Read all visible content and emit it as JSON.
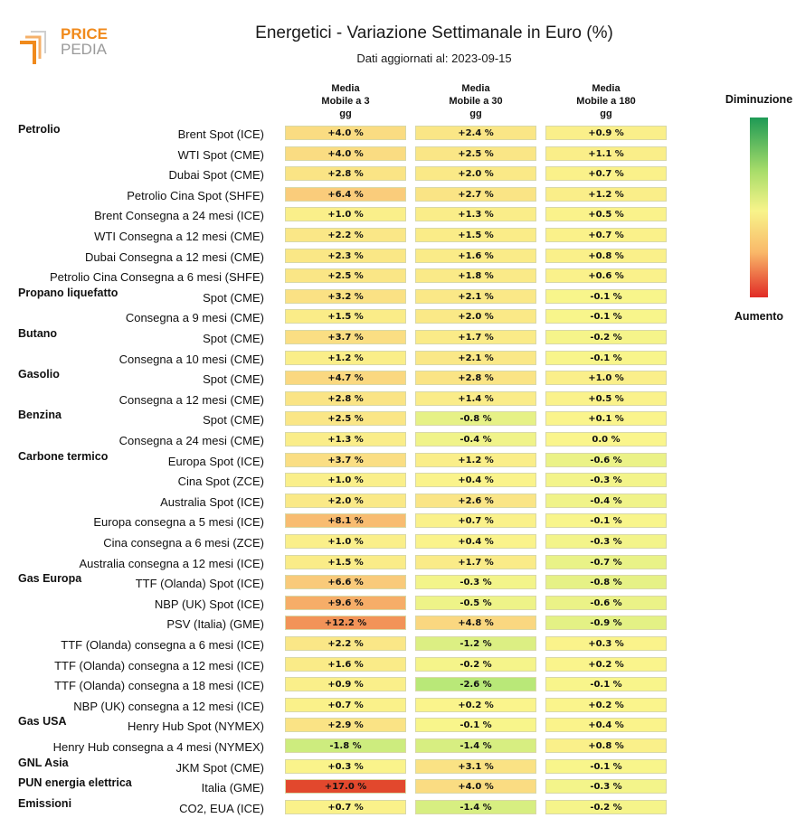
{
  "brand": {
    "line1": "PRICE",
    "line2": "PEDIA"
  },
  "chart_data": {
    "type": "heatmap",
    "title": "Energetici - Variazione Settimanale in Euro (%)",
    "subtitle": "Dati aggiornati al: 2023-09-15",
    "columns": [
      "Media Mobile a 3 gg",
      "Media Mobile a 30 gg",
      "Media Mobile a 180 gg"
    ],
    "legend": {
      "top": "Diminuzione",
      "bottom": "Aumento"
    },
    "rows": [
      {
        "group": "Petrolio",
        "label": "Brent Spot (ICE)",
        "values": [
          4.0,
          2.4,
          0.9
        ],
        "display": [
          "+4.0 %",
          "+2.4 %",
          "+0.9 %"
        ]
      },
      {
        "group": "",
        "label": "WTI Spot (CME)",
        "values": [
          4.0,
          2.5,
          1.1
        ],
        "display": [
          "+4.0 %",
          "+2.5 %",
          "+1.1 %"
        ]
      },
      {
        "group": "",
        "label": "Dubai Spot (CME)",
        "values": [
          2.8,
          2.0,
          0.7
        ],
        "display": [
          "+2.8 %",
          "+2.0 %",
          "+0.7 %"
        ]
      },
      {
        "group": "",
        "label": "Petrolio Cina Spot (SHFE)",
        "values": [
          6.4,
          2.7,
          1.2
        ],
        "display": [
          "+6.4 %",
          "+2.7 %",
          "+1.2 %"
        ]
      },
      {
        "group": "",
        "label": "Brent Consegna a 24 mesi (ICE)",
        "values": [
          1.0,
          1.3,
          0.5
        ],
        "display": [
          "+1.0 %",
          "+1.3 %",
          "+0.5 %"
        ]
      },
      {
        "group": "",
        "label": "WTI Consegna a 12 mesi (CME)",
        "values": [
          2.2,
          1.5,
          0.7
        ],
        "display": [
          "+2.2 %",
          "+1.5 %",
          "+0.7 %"
        ]
      },
      {
        "group": "",
        "label": "Dubai Consegna a 12 mesi (CME)",
        "values": [
          2.3,
          1.6,
          0.8
        ],
        "display": [
          "+2.3 %",
          "+1.6 %",
          "+0.8 %"
        ]
      },
      {
        "group": "",
        "label": "Petrolio Cina Consegna a 6 mesi (SHFE)",
        "values": [
          2.5,
          1.8,
          0.6
        ],
        "display": [
          "+2.5 %",
          "+1.8 %",
          "+0.6 %"
        ]
      },
      {
        "group": "Propano liquefatto",
        "label": "Spot (CME)",
        "values": [
          3.2,
          2.1,
          -0.1
        ],
        "display": [
          "+3.2 %",
          "+2.1 %",
          "-0.1 %"
        ]
      },
      {
        "group": "",
        "label": "Consegna a 9 mesi (CME)",
        "values": [
          1.5,
          2.0,
          -0.1
        ],
        "display": [
          "+1.5 %",
          "+2.0 %",
          "-0.1 %"
        ]
      },
      {
        "group": "Butano",
        "label": "Spot (CME)",
        "values": [
          3.7,
          1.7,
          -0.2
        ],
        "display": [
          "+3.7 %",
          "+1.7 %",
          "-0.2 %"
        ]
      },
      {
        "group": "",
        "label": "Consegna a 10 mesi (CME)",
        "values": [
          1.2,
          2.1,
          -0.1
        ],
        "display": [
          "+1.2 %",
          "+2.1 %",
          "-0.1 %"
        ]
      },
      {
        "group": "Gasolio",
        "label": "Spot (CME)",
        "values": [
          4.7,
          2.8,
          1.0
        ],
        "display": [
          "+4.7 %",
          "+2.8 %",
          "+1.0 %"
        ]
      },
      {
        "group": "",
        "label": "Consegna a 12 mesi (CME)",
        "values": [
          2.8,
          1.4,
          0.5
        ],
        "display": [
          "+2.8 %",
          "+1.4 %",
          "+0.5 %"
        ]
      },
      {
        "group": "Benzina",
        "label": "Spot (CME)",
        "values": [
          2.5,
          -0.8,
          0.1
        ],
        "display": [
          "+2.5 %",
          "-0.8 %",
          "+0.1 %"
        ]
      },
      {
        "group": "",
        "label": "Consegna a 24 mesi (CME)",
        "values": [
          1.3,
          -0.4,
          0.0
        ],
        "display": [
          "+1.3 %",
          "-0.4 %",
          "0.0 %"
        ]
      },
      {
        "group": "Carbone termico",
        "label": "Europa Spot (ICE)",
        "values": [
          3.7,
          1.2,
          -0.6
        ],
        "display": [
          "+3.7 %",
          "+1.2 %",
          "-0.6 %"
        ]
      },
      {
        "group": "",
        "label": "Cina Spot (ZCE)",
        "values": [
          1.0,
          0.4,
          -0.3
        ],
        "display": [
          "+1.0 %",
          "+0.4 %",
          "-0.3 %"
        ]
      },
      {
        "group": "",
        "label": "Australia Spot (ICE)",
        "values": [
          2.0,
          2.6,
          -0.4
        ],
        "display": [
          "+2.0 %",
          "+2.6 %",
          "-0.4 %"
        ]
      },
      {
        "group": "",
        "label": "Europa consegna a 5 mesi (ICE)",
        "values": [
          8.1,
          0.7,
          -0.1
        ],
        "display": [
          "+8.1 %",
          "+0.7 %",
          "-0.1 %"
        ]
      },
      {
        "group": "",
        "label": "Cina consegna a 6 mesi (ZCE)",
        "values": [
          1.0,
          0.4,
          -0.3
        ],
        "display": [
          "+1.0 %",
          "+0.4 %",
          "-0.3 %"
        ]
      },
      {
        "group": "",
        "label": "Australia consegna a 12 mesi (ICE)",
        "values": [
          1.5,
          1.7,
          -0.7
        ],
        "display": [
          "+1.5 %",
          "+1.7 %",
          "-0.7 %"
        ]
      },
      {
        "group": "Gas Europa",
        "label": "TTF (Olanda) Spot (ICE)",
        "values": [
          6.6,
          -0.3,
          -0.8
        ],
        "display": [
          "+6.6 %",
          "-0.3 %",
          "-0.8 %"
        ]
      },
      {
        "group": "",
        "label": "NBP (UK) Spot (ICE)",
        "values": [
          9.6,
          -0.5,
          -0.6
        ],
        "display": [
          "+9.6 %",
          "-0.5 %",
          "-0.6 %"
        ]
      },
      {
        "group": "",
        "label": "PSV (Italia) (GME)",
        "values": [
          12.2,
          4.8,
          -0.9
        ],
        "display": [
          "+12.2 %",
          "+4.8 %",
          "-0.9 %"
        ]
      },
      {
        "group": "",
        "label": "TTF (Olanda) consegna a 6 mesi (ICE)",
        "values": [
          2.2,
          -1.2,
          0.3
        ],
        "display": [
          "+2.2 %",
          "-1.2 %",
          "+0.3 %"
        ]
      },
      {
        "group": "",
        "label": "TTF (Olanda) consegna a 12 mesi (ICE)",
        "values": [
          1.6,
          -0.2,
          0.2
        ],
        "display": [
          "+1.6 %",
          "-0.2 %",
          "+0.2 %"
        ]
      },
      {
        "group": "",
        "label": "TTF (Olanda) consegna a 18 mesi (ICE)",
        "values": [
          0.9,
          -2.6,
          -0.1
        ],
        "display": [
          "+0.9 %",
          "-2.6 %",
          "-0.1 %"
        ]
      },
      {
        "group": "",
        "label": "NBP (UK) consegna a 12 mesi (ICE)",
        "values": [
          0.7,
          0.2,
          0.2
        ],
        "display": [
          "+0.7 %",
          "+0.2 %",
          "+0.2 %"
        ]
      },
      {
        "group": "Gas USA",
        "label": "Henry Hub Spot (NYMEX)",
        "values": [
          2.9,
          -0.1,
          0.4
        ],
        "display": [
          "+2.9 %",
          "-0.1 %",
          "+0.4 %"
        ]
      },
      {
        "group": "",
        "label": "Henry Hub consegna a 4 mesi (NYMEX)",
        "values": [
          -1.8,
          -1.4,
          0.8
        ],
        "display": [
          "-1.8 %",
          "-1.4 %",
          "+0.8 %"
        ]
      },
      {
        "group": "GNL Asia",
        "label": "JKM Spot (CME)",
        "values": [
          0.3,
          3.1,
          -0.1
        ],
        "display": [
          "+0.3 %",
          "+3.1 %",
          "-0.1 %"
        ]
      },
      {
        "group": "PUN energia elettrica",
        "label": "Italia (GME)",
        "values": [
          17.0,
          4.0,
          -0.3
        ],
        "display": [
          "+17.0 %",
          "+4.0 %",
          "-0.3 %"
        ]
      },
      {
        "group": "Emissioni",
        "label": "CO2, EUA (ICE)",
        "values": [
          0.7,
          -1.4,
          -0.2
        ],
        "display": [
          "+0.7 %",
          "-1.4 %",
          "-0.2 %"
        ]
      }
    ]
  }
}
